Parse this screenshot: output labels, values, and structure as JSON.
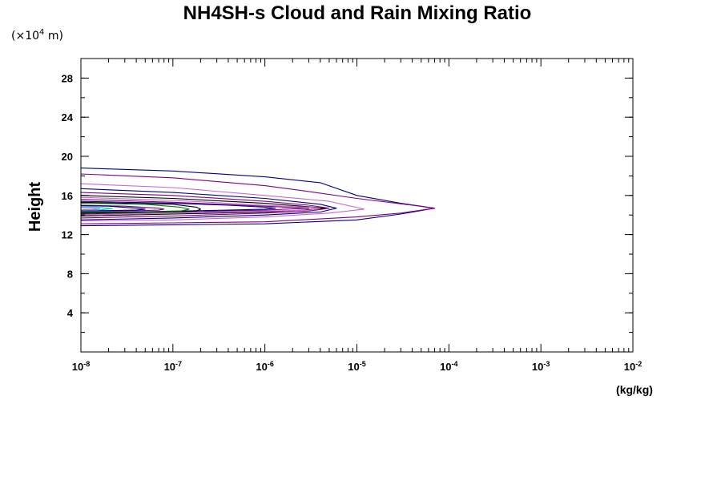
{
  "chart_data": {
    "type": "line",
    "title": "NH4SH-s Cloud and Rain Mixing Ratio",
    "y_unit": "(×10",
    "y_unit_exp": "4",
    "y_unit_tail": " m)",
    "ylabel": "Height",
    "x_unit": "(kg/kg)",
    "x_scale": "log",
    "xlim": [
      1e-08,
      0.01
    ],
    "ylim": [
      0,
      30
    ],
    "x_tick_base": "10",
    "x_ticks": [
      {
        "value": 1e-08,
        "exp": "-8"
      },
      {
        "value": 1e-07,
        "exp": "-7"
      },
      {
        "value": 1e-06,
        "exp": "-6"
      },
      {
        "value": 1e-05,
        "exp": "-5"
      },
      {
        "value": 0.0001,
        "exp": "-4"
      },
      {
        "value": 0.001,
        "exp": "-3"
      },
      {
        "value": 0.01,
        "exp": "-2"
      }
    ],
    "y_ticks": [
      4,
      8,
      12,
      16,
      20,
      24,
      28
    ],
    "y_minor_step": 2,
    "grid": false,
    "series": [
      {
        "color": "#000080",
        "points": [
          [
            1e-08,
            18.8
          ],
          [
            1e-07,
            18.5
          ],
          [
            1e-06,
            17.9
          ],
          [
            4e-06,
            17.3
          ],
          [
            1e-05,
            16.0
          ],
          [
            3e-05,
            15.2
          ],
          [
            7e-05,
            14.7
          ],
          [
            3e-05,
            14.1
          ],
          [
            1e-05,
            13.5
          ],
          [
            1e-06,
            13.1
          ],
          [
            1e-07,
            13.0
          ],
          [
            1e-08,
            12.9
          ]
        ]
      },
      {
        "color": "#800080",
        "points": [
          [
            1e-08,
            18.2
          ],
          [
            1e-07,
            17.8
          ],
          [
            1e-06,
            17.0
          ],
          [
            3e-06,
            16.4
          ],
          [
            1e-05,
            15.7
          ],
          [
            4e-05,
            15.0
          ],
          [
            7e-05,
            14.7
          ],
          [
            3e-05,
            14.2
          ],
          [
            1e-05,
            13.8
          ],
          [
            1e-06,
            13.3
          ],
          [
            1e-07,
            13.2
          ],
          [
            1e-08,
            13.1
          ]
        ]
      },
      {
        "color": "#cc66cc",
        "points": [
          [
            1e-08,
            17.2
          ],
          [
            1e-07,
            16.8
          ],
          [
            1e-06,
            16.0
          ],
          [
            5e-06,
            15.4
          ],
          [
            1.2e-05,
            14.6
          ],
          [
            5e-06,
            14.2
          ],
          [
            1e-06,
            13.8
          ],
          [
            1e-07,
            13.5
          ],
          [
            1e-08,
            13.4
          ]
        ]
      },
      {
        "color": "#000080",
        "points": [
          [
            1e-08,
            16.7
          ],
          [
            1e-07,
            16.3
          ],
          [
            1e-06,
            15.7
          ],
          [
            4e-06,
            15.1
          ],
          [
            6e-06,
            14.7
          ],
          [
            4e-06,
            14.3
          ],
          [
            1e-06,
            14.0
          ],
          [
            1e-07,
            13.7
          ],
          [
            1e-08,
            13.5
          ]
        ]
      },
      {
        "color": "#800080",
        "points": [
          [
            1e-08,
            16.3
          ],
          [
            1e-07,
            16.0
          ],
          [
            1e-06,
            15.4
          ],
          [
            3e-06,
            15.0
          ],
          [
            5e-06,
            14.7
          ],
          [
            3e-06,
            14.4
          ],
          [
            1e-06,
            14.2
          ],
          [
            1e-07,
            13.9
          ],
          [
            1e-08,
            13.7
          ]
        ]
      },
      {
        "color": "#000000",
        "points": [
          [
            1e-08,
            16.0
          ],
          [
            1e-07,
            15.7
          ],
          [
            1e-06,
            15.2
          ],
          [
            2.5e-06,
            14.9
          ],
          [
            4.5e-06,
            14.7
          ],
          [
            2.5e-06,
            14.5
          ],
          [
            1e-06,
            14.3
          ],
          [
            1e-07,
            14.1
          ],
          [
            1e-08,
            13.9
          ]
        ]
      },
      {
        "color": "#cc66cc",
        "points": [
          [
            1e-08,
            15.8
          ],
          [
            1e-07,
            15.5
          ],
          [
            1e-06,
            15.0
          ],
          [
            3e-06,
            14.8
          ],
          [
            4e-06,
            14.7
          ],
          [
            3e-06,
            14.5
          ],
          [
            1e-06,
            14.4
          ],
          [
            1e-07,
            14.2
          ],
          [
            1e-08,
            14.0
          ]
        ]
      },
      {
        "color": "#800080",
        "points": [
          [
            1e-08,
            15.6
          ],
          [
            1e-07,
            15.3
          ],
          [
            1e-06,
            14.9
          ],
          [
            3e-06,
            14.7
          ],
          [
            1e-06,
            14.5
          ],
          [
            1e-07,
            14.3
          ],
          [
            1e-08,
            14.1
          ]
        ]
      },
      {
        "color": "#000080",
        "points": [
          [
            1e-08,
            15.4
          ],
          [
            1e-07,
            15.2
          ],
          [
            4e-07,
            15.0
          ],
          [
            1e-06,
            14.8
          ],
          [
            1.3e-06,
            14.7
          ],
          [
            1e-06,
            14.6
          ],
          [
            4e-07,
            14.5
          ],
          [
            1e-07,
            14.4
          ],
          [
            1e-08,
            14.2
          ]
        ]
      },
      {
        "color": "#000000",
        "points": [
          [
            1e-08,
            15.3
          ],
          [
            1e-07,
            15.1
          ],
          [
            1.8e-07,
            14.8
          ],
          [
            2e-07,
            14.6
          ],
          [
            1.8e-07,
            14.4
          ],
          [
            1e-07,
            14.3
          ],
          [
            1e-08,
            14.2
          ]
        ]
      },
      {
        "color": "#008000",
        "points": [
          [
            1e-08,
            15.2
          ],
          [
            5e-08,
            15.1
          ],
          [
            1.2e-07,
            14.8
          ],
          [
            1.5e-07,
            14.6
          ],
          [
            1.2e-07,
            14.4
          ],
          [
            5e-08,
            14.3
          ],
          [
            1e-08,
            14.3
          ]
        ]
      },
      {
        "color": "#800080",
        "points": [
          [
            1e-08,
            15.0
          ],
          [
            3e-08,
            14.9
          ],
          [
            7e-08,
            14.7
          ],
          [
            8e-08,
            14.6
          ],
          [
            7e-08,
            14.5
          ],
          [
            3e-08,
            14.4
          ],
          [
            1e-08,
            14.4
          ]
        ]
      },
      {
        "color": "#000080",
        "points": [
          [
            1e-08,
            14.95
          ],
          [
            2e-08,
            14.9
          ],
          [
            4e-08,
            14.7
          ],
          [
            5e-08,
            14.6
          ],
          [
            4e-08,
            14.5
          ],
          [
            2e-08,
            14.45
          ],
          [
            1e-08,
            14.45
          ]
        ]
      },
      {
        "color": "#00cccc",
        "points": [
          [
            1e-08,
            14.85
          ],
          [
            1.5e-08,
            14.8
          ],
          [
            2.2e-08,
            14.65
          ],
          [
            1.5e-08,
            14.5
          ],
          [
            1e-08,
            14.5
          ]
        ]
      },
      {
        "color": "#cc66cc",
        "points": [
          [
            1e-08,
            14.75
          ],
          [
            1.3e-08,
            14.7
          ],
          [
            1.6e-08,
            14.62
          ],
          [
            1.3e-08,
            14.55
          ],
          [
            1e-08,
            14.55
          ]
        ]
      }
    ]
  }
}
